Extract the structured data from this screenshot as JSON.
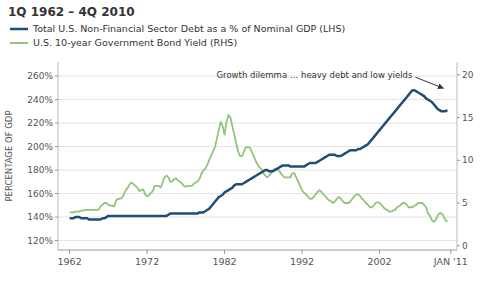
{
  "chart_data": {
    "type": "line",
    "title": "1Q 1962 – 4Q 2010",
    "y_label": "PERCENTAGE OF GDP",
    "annotation": {
      "text": "Growth dilemma … heavy debt and low yields",
      "x": 2010.5,
      "y": 248
    },
    "legend": "top",
    "grid": true,
    "xlim": [
      1960.5,
      2012.0
    ],
    "xticks": [
      1962,
      1972,
      1982,
      1992,
      2002,
      {
        "value": 2011.2,
        "label": "JAN '11"
      }
    ],
    "ylim": [
      112,
      272
    ],
    "yticks": [
      {
        "value": 120,
        "label": "120%"
      },
      {
        "value": 140,
        "label": "140%"
      },
      {
        "value": 160,
        "label": "160%"
      },
      {
        "value": 180,
        "label": "180%"
      },
      {
        "value": 200,
        "label": "200%"
      },
      {
        "value": 220,
        "label": "220%"
      },
      {
        "value": 240,
        "label": "240%"
      },
      {
        "value": 260,
        "label": "260%"
      }
    ],
    "y2lim": [
      -0.5,
      21.5
    ],
    "y2ticks": [
      0,
      5,
      10,
      15,
      20
    ],
    "x": [
      1962.0,
      1962.25,
      1962.5,
      1962.75,
      1963.0,
      1963.25,
      1963.5,
      1963.75,
      1964.0,
      1964.25,
      1964.5,
      1964.75,
      1965.0,
      1965.25,
      1965.5,
      1965.75,
      1966.0,
      1966.25,
      1966.5,
      1966.75,
      1967.0,
      1967.25,
      1967.5,
      1967.75,
      1968.0,
      1968.25,
      1968.5,
      1968.75,
      1969.0,
      1969.25,
      1969.5,
      1969.75,
      1970.0,
      1970.25,
      1970.5,
      1970.75,
      1971.0,
      1971.25,
      1971.5,
      1971.75,
      1972.0,
      1972.25,
      1972.5,
      1972.75,
      1973.0,
      1973.25,
      1973.5,
      1973.75,
      1974.0,
      1974.25,
      1974.5,
      1974.75,
      1975.0,
      1975.25,
      1975.5,
      1975.75,
      1976.0,
      1976.25,
      1976.5,
      1976.75,
      1977.0,
      1977.25,
      1977.5,
      1977.75,
      1978.0,
      1978.25,
      1978.5,
      1978.75,
      1979.0,
      1979.25,
      1979.5,
      1979.75,
      1980.0,
      1980.25,
      1980.5,
      1980.75,
      1981.0,
      1981.25,
      1981.5,
      1981.75,
      1982.0,
      1982.25,
      1982.5,
      1982.75,
      1983.0,
      1983.25,
      1983.5,
      1983.75,
      1984.0,
      1984.25,
      1984.5,
      1984.75,
      1985.0,
      1985.25,
      1985.5,
      1985.75,
      1986.0,
      1986.25,
      1986.5,
      1986.75,
      1987.0,
      1987.25,
      1987.5,
      1987.75,
      1988.0,
      1988.25,
      1988.5,
      1988.75,
      1989.0,
      1989.25,
      1989.5,
      1989.75,
      1990.0,
      1990.25,
      1990.5,
      1990.75,
      1991.0,
      1991.25,
      1991.5,
      1991.75,
      1992.0,
      1992.25,
      1992.5,
      1992.75,
      1993.0,
      1993.25,
      1993.5,
      1993.75,
      1994.0,
      1994.25,
      1994.5,
      1994.75,
      1995.0,
      1995.25,
      1995.5,
      1995.75,
      1996.0,
      1996.25,
      1996.5,
      1996.75,
      1997.0,
      1997.25,
      1997.5,
      1997.75,
      1998.0,
      1998.25,
      1998.5,
      1998.75,
      1999.0,
      1999.25,
      1999.5,
      1999.75,
      2000.0,
      2000.25,
      2000.5,
      2000.75,
      2001.0,
      2001.25,
      2001.5,
      2001.75,
      2002.0,
      2002.25,
      2002.5,
      2002.75,
      2003.0,
      2003.25,
      2003.5,
      2003.75,
      2004.0,
      2004.25,
      2004.5,
      2004.75,
      2005.0,
      2005.25,
      2005.5,
      2005.75,
      2006.0,
      2006.25,
      2006.5,
      2006.75,
      2007.0,
      2007.25,
      2007.5,
      2007.75,
      2008.0,
      2008.25,
      2008.5,
      2008.75,
      2009.0,
      2009.25,
      2009.5,
      2009.75,
      2010.0,
      2010.25,
      2010.5,
      2010.75
    ],
    "series": [
      {
        "name": "Total U.S. Non-Financial Sector Debt as a % of Nominal GDP (LHS)",
        "color": "#1f4e79",
        "values": [
          139,
          139,
          139,
          140,
          140,
          140,
          139,
          139,
          139,
          139,
          138,
          138,
          138,
          138,
          138,
          138,
          138,
          139,
          139,
          140,
          141,
          141,
          141,
          141,
          141,
          141,
          141,
          141,
          141,
          141,
          141,
          141,
          141,
          141,
          141,
          141,
          141,
          141,
          141,
          141,
          141,
          141,
          141,
          141,
          141,
          141,
          141,
          141,
          141,
          141,
          141,
          142,
          143,
          143,
          143,
          143,
          143,
          143,
          143,
          143,
          143,
          143,
          143,
          143,
          143,
          143,
          143,
          144,
          144,
          144,
          145,
          146,
          147,
          149,
          151,
          153,
          155,
          157,
          158,
          159,
          161,
          162,
          163,
          164,
          165,
          167,
          168,
          168,
          168,
          168,
          169,
          170,
          171,
          172,
          173,
          174,
          175,
          176,
          177,
          178,
          179,
          180,
          180,
          179,
          179,
          179,
          180,
          181,
          182,
          183,
          184,
          184,
          184,
          184,
          183,
          183,
          183,
          183,
          183,
          183,
          183,
          183,
          184,
          185,
          186,
          186,
          186,
          186,
          187,
          188,
          189,
          190,
          191,
          192,
          193,
          193,
          193,
          193,
          192,
          192,
          192,
          193,
          194,
          195,
          196,
          197,
          197,
          197,
          197,
          198,
          198,
          199,
          200,
          201,
          202,
          204,
          206,
          208,
          210,
          212,
          214,
          216,
          218,
          220,
          222,
          224,
          226,
          228,
          230,
          232,
          234,
          236,
          238,
          240,
          242,
          244,
          246,
          248,
          248,
          247,
          246,
          245,
          244,
          243,
          241,
          240,
          239,
          238,
          236,
          234,
          232,
          231,
          230,
          230,
          230,
          231
        ]
      },
      {
        "name": "U.S. 10-year Government Bond Yield (RHS)",
        "color": "#92c47b",
        "axis": "y2",
        "values": [
          3.9,
          3.9,
          3.9,
          4.0,
          4.0,
          4.0,
          4.1,
          4.1,
          4.2,
          4.2,
          4.2,
          4.2,
          4.2,
          4.2,
          4.2,
          4.2,
          4.6,
          4.8,
          5.0,
          5.0,
          4.8,
          4.7,
          4.7,
          4.6,
          5.3,
          5.5,
          5.5,
          5.6,
          6.0,
          6.5,
          6.8,
          7.2,
          7.4,
          7.2,
          7.0,
          6.8,
          6.4,
          6.5,
          6.6,
          6.0,
          5.8,
          5.9,
          6.2,
          6.4,
          7.0,
          7.0,
          7.0,
          6.8,
          7.4,
          8.0,
          8.2,
          8.0,
          7.5,
          7.5,
          7.8,
          7.9,
          7.6,
          7.5,
          7.3,
          7.0,
          6.9,
          7.0,
          7.0,
          7.0,
          7.2,
          7.4,
          7.5,
          7.8,
          8.4,
          8.8,
          9.0,
          9.4,
          10.0,
          10.5,
          11.0,
          11.5,
          12.5,
          13.5,
          14.5,
          14.0,
          13.0,
          14.5,
          15.3,
          15.0,
          14.0,
          13.0,
          12.0,
          11.0,
          10.5,
          10.5,
          11.0,
          11.5,
          11.5,
          11.5,
          11.0,
          10.5,
          10.0,
          9.5,
          9.2,
          9.0,
          8.5,
          8.2,
          8.0,
          8.2,
          8.5,
          8.8,
          9.0,
          9.0,
          8.8,
          8.5,
          8.2,
          8.0,
          8.0,
          8.0,
          8.0,
          8.5,
          8.5,
          8.0,
          7.5,
          7.0,
          6.5,
          6.2,
          6.0,
          5.8,
          5.5,
          5.5,
          5.7,
          6.0,
          6.3,
          6.5,
          6.3,
          6.0,
          5.8,
          5.5,
          5.3,
          5.2,
          5.0,
          5.2,
          5.5,
          5.7,
          5.5,
          5.2,
          5.0,
          5.0,
          5.0,
          5.2,
          5.5,
          5.8,
          6.0,
          6.0,
          5.8,
          5.5,
          5.3,
          5.0,
          4.8,
          4.5,
          4.5,
          4.7,
          5.0,
          5.1,
          5.0,
          4.8,
          4.5,
          4.3,
          4.2,
          4.0,
          4.0,
          4.1,
          4.2,
          4.5,
          4.6,
          4.8,
          5.0,
          5.0,
          4.8,
          4.5,
          4.5,
          4.5,
          4.7,
          4.8,
          5.0,
          5.0,
          5.0,
          4.8,
          4.5,
          3.8,
          3.5,
          3.0,
          2.8,
          3.0,
          3.5,
          3.8,
          3.8,
          3.5,
          3.0,
          2.8
        ]
      }
    ]
  }
}
